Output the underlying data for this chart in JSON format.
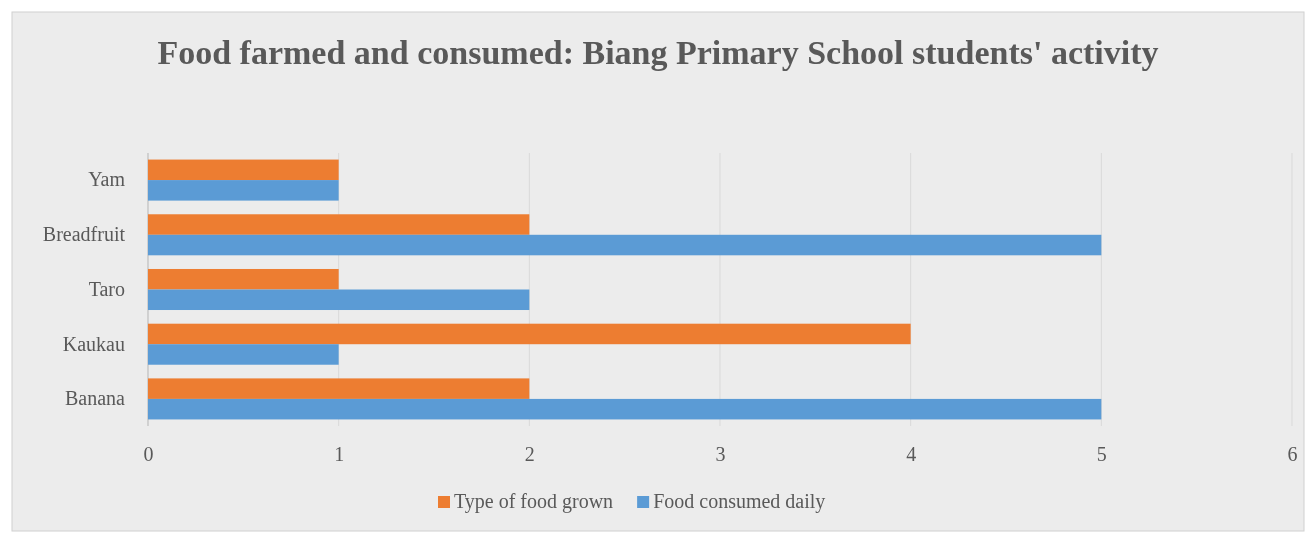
{
  "chart_data": {
    "type": "bar",
    "orientation": "horizontal",
    "title": "Food farmed and consumed: Biang Primary School students' activity",
    "categories": [
      "Yam",
      "Breadfruit",
      "Taro",
      "Kaukau",
      "Banana"
    ],
    "series": [
      {
        "name": "Type of food grown",
        "color": "#ed7d31",
        "values": [
          1,
          2,
          1,
          4,
          2
        ]
      },
      {
        "name": "Food consumed daily",
        "color": "#5b9bd5",
        "values": [
          1,
          5,
          2,
          1,
          5
        ]
      }
    ],
    "xlim": [
      0,
      6
    ],
    "xticks": [
      0,
      1,
      2,
      3,
      4,
      5,
      6
    ],
    "grid": "x",
    "legend": "bottom"
  }
}
